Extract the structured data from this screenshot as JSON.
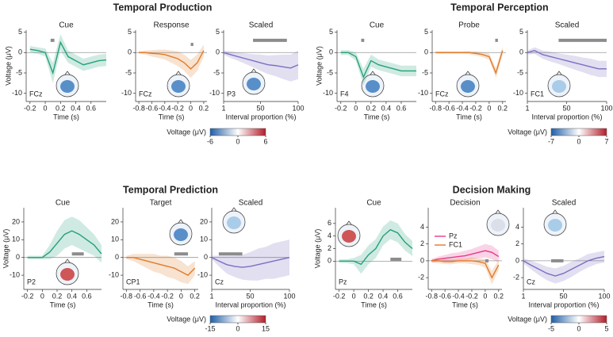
{
  "sections": [
    {
      "title": "Temporal Production",
      "colorbar": {
        "label": "Voltage (μV)",
        "lim": [
          -6,
          6
        ],
        "ticks": [
          -6,
          0,
          6
        ],
        "colors": [
          "#1f5fa8",
          "#ffffff",
          "#b31d2a"
        ]
      }
    },
    {
      "title": "Temporal Perception",
      "colorbar": {
        "label": "Voltage (μV)",
        "lim": [
          -7,
          7
        ],
        "ticks": [
          -7,
          0,
          7
        ],
        "colors": [
          "#1f5fa8",
          "#ffffff",
          "#b31d2a"
        ]
      }
    },
    {
      "title": "Temporal Prediction",
      "colorbar": {
        "label": "Voltage (μV)",
        "lim": [
          -15,
          15
        ],
        "ticks": [
          -15,
          0,
          15
        ],
        "colors": [
          "#1f5fa8",
          "#ffffff",
          "#b31d2a"
        ]
      }
    },
    {
      "title": "Decision Making",
      "colorbar": {
        "label": "Voltage (μV)",
        "lim": [
          -5,
          5
        ],
        "ticks": [
          -5,
          0,
          5
        ],
        "colors": [
          "#1f5fa8",
          "#ffffff",
          "#b31d2a"
        ]
      }
    }
  ],
  "chart_data": [
    {
      "type": "line",
      "title": "Cue",
      "electrode": "FCz",
      "xlabel": "Time (s)",
      "ylabel": "Voltage (μV)",
      "xlim": [
        -0.25,
        0.8
      ],
      "ylim": [
        -12,
        5.5
      ],
      "xticks": [
        -0.2,
        0,
        0.2,
        0.4,
        0.6
      ],
      "yticks": [
        5,
        0,
        -5,
        -10
      ],
      "x": [
        -0.2,
        -0.1,
        0,
        0.1,
        0.2,
        0.3,
        0.4,
        0.5,
        0.6,
        0.7,
        0.8
      ],
      "series": [
        {
          "color": "#23a079",
          "values": [
            0.8,
            0.5,
            0,
            -5,
            2.5,
            -1,
            -2,
            -3,
            -2.5,
            -2,
            -1.8
          ],
          "error": [
            0.8,
            0.8,
            1,
            2.5,
            2,
            1.5,
            1.5,
            1.5,
            1.5,
            1.5,
            1.5
          ]
        }
      ],
      "sig_bar": {
        "x": [
          0.07,
          0.12
        ],
        "y": 3
      },
      "topomap": "#3d7cc0"
    },
    {
      "type": "line",
      "title": "Response",
      "electrode": "FCz",
      "xlabel": "Time (s)",
      "xlim": [
        -0.85,
        0.25
      ],
      "ylim": [
        -12,
        5.5
      ],
      "xticks": [
        -0.8,
        -0.6,
        -0.4,
        -0.2,
        0,
        0.2
      ],
      "yticks": [
        5,
        0,
        -5,
        -10
      ],
      "x": [
        -0.8,
        -0.7,
        -0.6,
        -0.5,
        -0.4,
        -0.3,
        -0.2,
        -0.1,
        0,
        0.1,
        0.2
      ],
      "series": [
        {
          "color": "#e07b2a",
          "values": [
            0,
            0,
            -0.2,
            -0.3,
            -0.5,
            -1,
            -1.5,
            -2.5,
            -4,
            -2.5,
            0.5
          ],
          "error": [
            0.3,
            0.5,
            0.8,
            1,
            1.2,
            1.5,
            1.8,
            2,
            2.2,
            2,
            1.5
          ]
        }
      ],
      "sig_bar": {
        "x": [
          0,
          0.04
        ],
        "y": 2
      },
      "topomap": "#3d7cc0"
    },
    {
      "type": "line",
      "title": "Scaled",
      "electrode": "P3",
      "xlabel": "Interval proportion (%)",
      "xlim": [
        1,
        100
      ],
      "ylim": [
        -12,
        5.5
      ],
      "xticks": [
        1,
        50,
        100
      ],
      "yticks": [
        5,
        0,
        -5,
        -10
      ],
      "x": [
        1,
        10,
        20,
        30,
        40,
        50,
        60,
        70,
        80,
        90,
        100
      ],
      "series": [
        {
          "color": "#7b6fc1",
          "values": [
            0,
            -0.5,
            -1,
            -1.5,
            -2,
            -2.5,
            -3,
            -3.2,
            -3.5,
            -3.8,
            -3
          ],
          "error": [
            0.5,
            0.8,
            1,
            1.3,
            1.6,
            2,
            2.3,
            2.6,
            3,
            3.3,
            3.5
          ]
        }
      ],
      "sig_bar": {
        "x": [
          40,
          85
        ],
        "y": 3
      },
      "topomap": "#3d7cc0"
    },
    {
      "type": "line",
      "title": "Cue",
      "electrode": "F4",
      "xlabel": "Time (s)",
      "ylabel": "Voltage (μV)",
      "xlim": [
        -0.25,
        0.8
      ],
      "ylim": [
        -12,
        5.5
      ],
      "xticks": [
        -0.2,
        0,
        0.2,
        0.4,
        0.6
      ],
      "yticks": [
        5,
        0,
        -5,
        -10
      ],
      "x": [
        -0.2,
        -0.1,
        0,
        0.1,
        0.2,
        0.3,
        0.4,
        0.5,
        0.6,
        0.7,
        0.8
      ],
      "series": [
        {
          "color": "#23a079",
          "values": [
            0,
            0,
            -1,
            -6,
            -2,
            -3,
            -3.5,
            -4,
            -4.5,
            -4.5,
            -4.5
          ],
          "error": [
            0.6,
            0.6,
            1,
            2,
            1.5,
            1.3,
            1.3,
            1.3,
            1.3,
            1.3,
            1.3
          ]
        }
      ],
      "sig_bar": {
        "x": [
          0.07,
          0.11
        ],
        "y": 3
      },
      "topomap": "#3d7cc0"
    },
    {
      "type": "line",
      "title": "Probe",
      "electrode": "FCz",
      "xlabel": "Time (s)",
      "xlim": [
        -0.85,
        0.25
      ],
      "ylim": [
        -12,
        5.5
      ],
      "xticks": [
        -0.8,
        -0.6,
        -0.4,
        -0.2,
        0,
        0.2
      ],
      "yticks": [
        5,
        0,
        -5,
        -10
      ],
      "x": [
        -0.8,
        -0.7,
        -0.6,
        -0.5,
        -0.4,
        -0.3,
        -0.2,
        -0.1,
        0,
        0.1,
        0.2
      ],
      "series": [
        {
          "color": "#e07b2a",
          "values": [
            0,
            0,
            0,
            0,
            0,
            0,
            -0.2,
            -0.5,
            -1,
            -5,
            0.5
          ],
          "error": [
            0.3,
            0.3,
            0.3,
            0.3,
            0.3,
            0.4,
            0.5,
            0.6,
            0.8,
            1.2,
            1
          ]
        }
      ],
      "sig_bar": {
        "x": [
          0.09,
          0.13
        ],
        "y": 3
      },
      "topomap": "#3d7cc0"
    },
    {
      "type": "line",
      "title": "Scaled",
      "electrode": "FC1",
      "xlabel": "Interval proportion (%)",
      "xlim": [
        1,
        100
      ],
      "ylim": [
        -12,
        5.5
      ],
      "xticks": [
        1,
        50,
        100
      ],
      "yticks": [
        5,
        0,
        -5,
        -10
      ],
      "x": [
        1,
        10,
        20,
        30,
        40,
        50,
        60,
        70,
        80,
        90,
        100
      ],
      "series": [
        {
          "color": "#7b6fc1",
          "values": [
            0,
            0.5,
            -0.5,
            -1,
            -1.5,
            -2,
            -2.5,
            -3,
            -3.5,
            -4,
            -4
          ],
          "error": [
            0.5,
            0.8,
            1,
            1.2,
            1.3,
            1.5,
            1.7,
            1.8,
            2,
            2,
            2
          ]
        }
      ],
      "sig_bar": {
        "x": [
          40,
          100
        ],
        "y": 3
      },
      "topomap": "#9cc4e4"
    },
    {
      "type": "line",
      "title": "Cue",
      "electrode": "P2",
      "xlabel": "Time (s)",
      "ylabel": "Voltage (μV)",
      "xlim": [
        -0.25,
        0.8
      ],
      "ylim": [
        -18,
        28
      ],
      "xticks": [
        -0.2,
        0,
        0.2,
        0.4,
        0.6
      ],
      "yticks": [
        20,
        10,
        0,
        -10
      ],
      "x": [
        -0.2,
        -0.1,
        0,
        0.1,
        0.2,
        0.3,
        0.4,
        0.5,
        0.6,
        0.7,
        0.8
      ],
      "series": [
        {
          "color": "#23a079",
          "values": [
            0,
            0,
            0,
            3,
            8,
            13,
            15,
            13,
            10,
            7,
            2
          ],
          "error": [
            1,
            1,
            1,
            4,
            7,
            8,
            8,
            8,
            7,
            6,
            5
          ]
        }
      ],
      "sig_bar": {
        "x": [
          0.4,
          0.56
        ],
        "y": 2
      },
      "topomap": "#c93a3a"
    },
    {
      "type": "line",
      "title": "Target",
      "electrode": "CP1",
      "xlabel": "Time (s)",
      "xlim": [
        -0.85,
        0.25
      ],
      "ylim": [
        -18,
        28
      ],
      "xticks": [
        -0.8,
        -0.6,
        -0.4,
        -0.2,
        0,
        0.2
      ],
      "yticks": [
        20,
        10,
        0,
        -10
      ],
      "x": [
        -0.8,
        -0.7,
        -0.6,
        -0.5,
        -0.4,
        -0.3,
        -0.2,
        -0.1,
        0,
        0.1,
        0.2
      ],
      "series": [
        {
          "color": "#e07b2a",
          "values": [
            0,
            0,
            -1,
            -2,
            -3,
            -4,
            -5,
            -6,
            -8,
            -10,
            -6
          ],
          "error": [
            1,
            2,
            3,
            4,
            5,
            5,
            6,
            6,
            6,
            5,
            4
          ]
        }
      ],
      "sig_bar": {
        "x": [
          -0.1,
          0.1
        ],
        "y": 2
      },
      "topomap": "#3d7cc0"
    },
    {
      "type": "line",
      "title": "Scaled",
      "electrode": "Cz",
      "xlabel": "Interval proportion (%)",
      "xlim": [
        1,
        100
      ],
      "ylim": [
        -18,
        28
      ],
      "xticks": [
        1,
        50,
        100
      ],
      "yticks": [
        20,
        10,
        0,
        -10
      ],
      "x": [
        1,
        10,
        20,
        30,
        40,
        50,
        60,
        70,
        80,
        90,
        100
      ],
      "series": [
        {
          "color": "#7b6fc1",
          "values": [
            0,
            -2,
            -4,
            -5,
            -5.5,
            -5,
            -4,
            -3,
            -2,
            -1,
            0
          ],
          "error": [
            1,
            3,
            5,
            6,
            7,
            8,
            9,
            9,
            10,
            10,
            10
          ]
        }
      ],
      "sig_bar": {
        "x": [
          10,
          40
        ],
        "y": 2
      },
      "topomap": "#9cc4e4"
    },
    {
      "type": "line",
      "title": "Cue",
      "electrode": "Pz",
      "xlabel": "Time (s)",
      "ylabel": "Voltage (μV)",
      "xlim": [
        -0.25,
        0.8
      ],
      "ylim": [
        -4.5,
        8.5
      ],
      "xticks": [
        -0.2,
        0,
        0.2,
        0.4,
        0.6
      ],
      "yticks": [
        6,
        4,
        2,
        0
      ],
      "x": [
        -0.2,
        -0.1,
        0,
        0.1,
        0.2,
        0.3,
        0.4,
        0.5,
        0.6,
        0.7,
        0.8
      ],
      "series": [
        {
          "color": "#23a079",
          "values": [
            0,
            0,
            0,
            -0.5,
            1,
            2,
            4,
            5,
            4.5,
            3,
            2
          ],
          "error": [
            0.3,
            0.3,
            0.5,
            1.5,
            1.5,
            1.5,
            1.5,
            1.5,
            1.5,
            1.3,
            1.2
          ]
        }
      ],
      "sig_bar": {
        "x": [
          0.5,
          0.65
        ],
        "y": 0.3
      },
      "topomap": "#c93a3a"
    },
    {
      "type": "line",
      "title": "Decision",
      "xlabel": "Time (s)",
      "xlim": [
        -0.85,
        0.25
      ],
      "ylim": [
        -3.4,
        6.3
      ],
      "xticks": [
        -0.8,
        -0.6,
        -0.4,
        -0.2,
        0,
        0.2
      ],
      "yticks": [
        4,
        2,
        0,
        -2
      ],
      "x": [
        -0.8,
        -0.7,
        -0.6,
        -0.5,
        -0.4,
        -0.3,
        -0.2,
        -0.1,
        0,
        0.1,
        0.2
      ],
      "series": [
        {
          "name": "Pz",
          "color": "#e6398f",
          "values": [
            0,
            0.2,
            0.3,
            0.4,
            0.5,
            0.6,
            0.8,
            1,
            1.2,
            1,
            0.5
          ],
          "error": [
            0.2,
            0.3,
            0.4,
            0.5,
            0.5,
            0.6,
            0.6,
            0.7,
            0.8,
            0.8,
            0.7
          ]
        },
        {
          "name": "FC1",
          "color": "#e07b2a",
          "values": [
            0,
            0,
            -0.1,
            -0.1,
            0,
            0,
            0,
            -0.1,
            -0.3,
            -2,
            -0.5
          ],
          "error": [
            0.2,
            0.3,
            0.3,
            0.3,
            0.3,
            0.3,
            0.4,
            0.4,
            0.5,
            0.8,
            0.6
          ]
        }
      ],
      "sig_bar": {
        "x": [
          0,
          0.05
        ],
        "y": 0
      },
      "topomap": "#d6dbe6"
    },
    {
      "type": "line",
      "title": "Scaled",
      "electrode": "Cz",
      "xlabel": "Interval proportion (%)",
      "xlim": [
        1,
        100
      ],
      "ylim": [
        -3.4,
        6.3
      ],
      "xticks": [
        1,
        50,
        100
      ],
      "yticks": [
        4,
        2,
        0,
        -2
      ],
      "x": [
        1,
        10,
        20,
        30,
        40,
        50,
        60,
        70,
        80,
        90,
        100
      ],
      "series": [
        {
          "color": "#7b6fc1",
          "values": [
            0,
            -0.5,
            -1,
            -1.5,
            -1.8,
            -1.5,
            -1,
            -0.5,
            0,
            0.3,
            0.5
          ],
          "error": [
            0.3,
            0.5,
            0.7,
            0.8,
            0.9,
            0.9,
            0.9,
            0.8,
            0.8,
            0.7,
            0.7
          ]
        }
      ],
      "sig_bar": {
        "x": [
          35,
          50
        ],
        "y": 0
      },
      "topomap": "#9cc4e4"
    }
  ]
}
